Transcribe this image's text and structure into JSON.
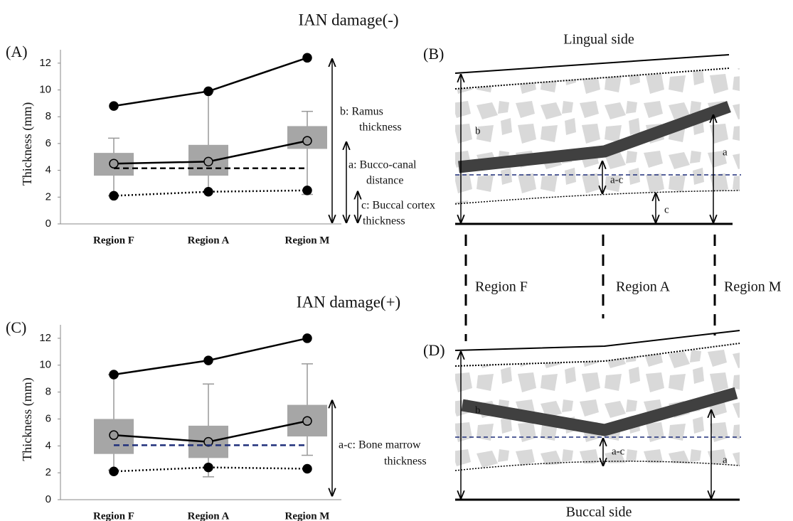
{
  "chart_data": [
    {
      "type": "box-line",
      "title": "IAN damage(-)",
      "panel": "(A)",
      "y_label": "Thickness (mm)",
      "categories": [
        "Region F",
        "Region A",
        "Region M"
      ],
      "ylim": [
        0,
        13
      ],
      "yticks": [
        0,
        2,
        4,
        6,
        8,
        10,
        12
      ],
      "boxes": [
        {
          "low": 2.1,
          "q1": 3.6,
          "q3": 5.3,
          "high": 6.4
        },
        {
          "low": 2.4,
          "q1": 3.6,
          "q3": 5.9,
          "high": 9.9
        },
        {
          "low": 2.2,
          "q1": 5.6,
          "q3": 7.3,
          "high": 8.4
        }
      ],
      "box_color": "#a6a6a6",
      "series": [
        {
          "color": "#000000",
          "style": "solid",
          "marker_color": "#000000",
          "values": [
            8.8,
            9.9,
            12.4
          ]
        },
        {
          "color": "#000000",
          "style": "solid",
          "marker_color": "#999999",
          "values": [
            4.5,
            4.65,
            6.2
          ]
        },
        {
          "color": "#000000",
          "style": "dashed",
          "values": [
            4.15,
            4.15,
            4.15
          ]
        },
        {
          "color": "#000000",
          "style": "dotted",
          "marker_color": "#000000",
          "values": [
            2.1,
            2.4,
            2.5
          ]
        }
      ],
      "annotations": [
        [
          "b: Ramus",
          "thickness"
        ],
        [
          "a: Bucco-canal",
          "distance"
        ],
        [
          "c: Buccal cortex",
          "thickness"
        ]
      ]
    },
    {
      "type": "box-line",
      "title": "IAN damage(+)",
      "panel": "(C)",
      "y_label": "Thickness (mm)",
      "categories": [
        "Region F",
        "Region A",
        "Region M"
      ],
      "ylim": [
        0,
        13
      ],
      "yticks": [
        0,
        2,
        4,
        6,
        8,
        10,
        12
      ],
      "boxes": [
        {
          "low": 2.2,
          "q1": 3.4,
          "q3": 6.0,
          "high": 9.3
        },
        {
          "low": 1.7,
          "q1": 3.1,
          "q3": 5.5,
          "high": 8.6
        },
        {
          "low": 3.3,
          "q1": 4.7,
          "q3": 7.05,
          "high": 10.1
        }
      ],
      "box_color": "#a6a6a6",
      "series": [
        {
          "color": "#000000",
          "style": "solid",
          "marker_color": "#000000",
          "values": [
            9.3,
            10.35,
            12.0
          ]
        },
        {
          "color": "#000000",
          "style": "solid",
          "marker_color": "#999999",
          "values": [
            4.8,
            4.3,
            5.85
          ]
        },
        {
          "color": "#1f2f7a",
          "style": "dashed",
          "values": [
            4.05,
            4.05,
            4.05
          ]
        },
        {
          "color": "#000000",
          "style": "dotted",
          "marker_color": "#000000",
          "values": [
            2.1,
            2.4,
            2.3
          ]
        }
      ],
      "annotations": [
        [
          "a-c: Bone marrow",
          "thickness"
        ]
      ]
    }
  ],
  "diagrams": [
    {
      "panel": "(B)",
      "side": "Lingual side",
      "labels": [
        "b",
        "a",
        "a-c",
        "c"
      ]
    },
    {
      "panel": "(D)",
      "side": "Buccal side",
      "labels": [
        "b",
        "a",
        "a-c"
      ]
    }
  ],
  "regions": [
    "Region F",
    "Region A",
    "Region M"
  ]
}
